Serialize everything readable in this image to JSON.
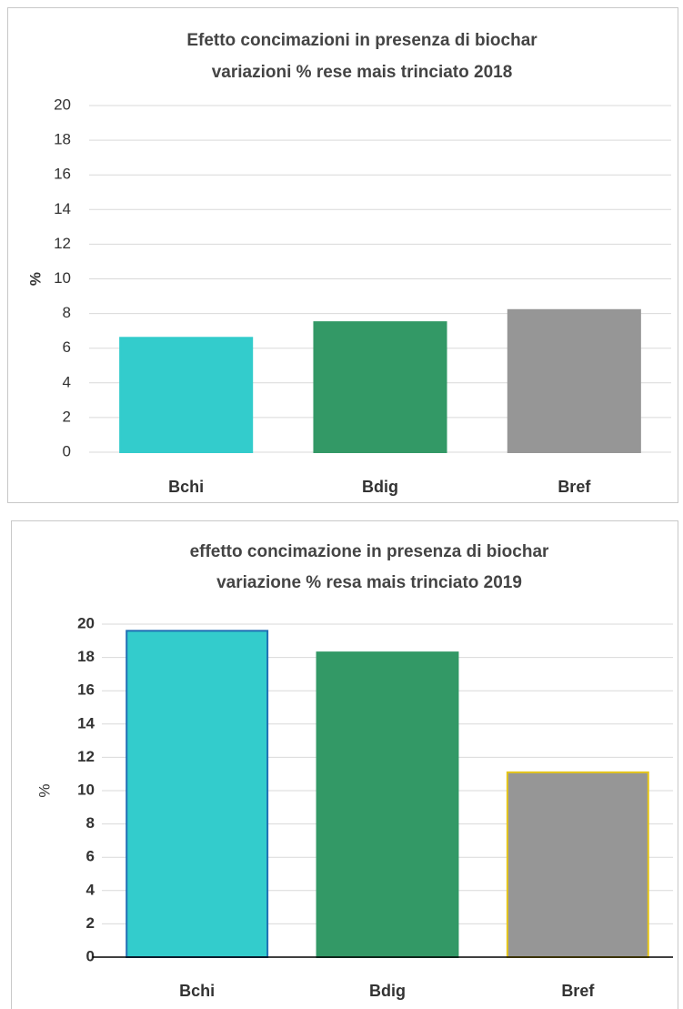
{
  "chart_data": [
    {
      "type": "bar",
      "title": [
        "Efetto concimazioni in presenza di biochar",
        "variazioni % rese mais trinciato 2018"
      ],
      "y_label": "%",
      "categories": [
        "Bchi",
        "Bdig",
        "Bref"
      ],
      "values": [
        6.6,
        7.5,
        8.2
      ],
      "colors": [
        "#33cccc",
        "#339966",
        "#969696"
      ],
      "edge_colors": [
        "#33cccc",
        "#339966",
        "#969696"
      ],
      "ylim": [
        0,
        20
      ],
      "yticks": [
        0,
        2,
        4,
        6,
        8,
        10,
        12,
        14,
        16,
        18,
        20
      ],
      "grid": true,
      "bold_ticks": false,
      "bold_ylabel": true,
      "x_axis_line": false
    },
    {
      "type": "bar",
      "title": [
        "effetto concimazione in presenza di biochar",
        "variazione % resa mais trinciato 2019"
      ],
      "y_label": "%",
      "categories": [
        "Bchi",
        "Bdig",
        "Bref"
      ],
      "values": [
        19.6,
        18.3,
        11.1
      ],
      "colors": [
        "#33cccc",
        "#339966",
        "#969696"
      ],
      "edge_colors": [
        "#1f6fb4",
        "#339966",
        "#e6c619"
      ],
      "ylim": [
        0,
        20
      ],
      "yticks": [
        0,
        2,
        4,
        6,
        8,
        10,
        12,
        14,
        16,
        18,
        20
      ],
      "grid": true,
      "bold_ticks": true,
      "bold_ylabel": false,
      "x_axis_line": true
    }
  ]
}
